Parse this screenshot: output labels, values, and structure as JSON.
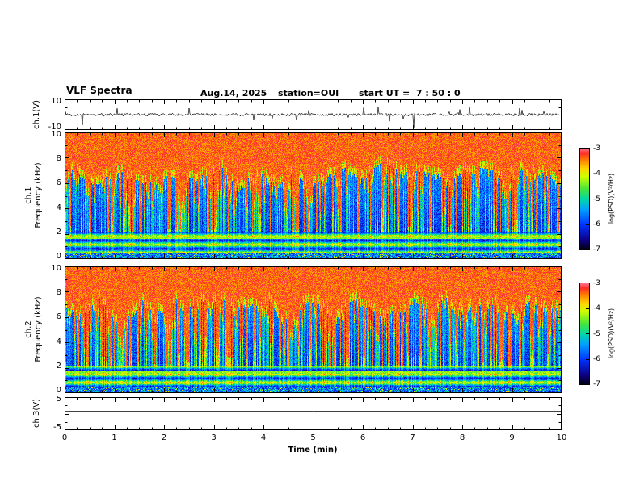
{
  "header": {
    "title": "VLF Spectra",
    "date": "Aug.14, 2025",
    "station": "station=OUI",
    "start_ut": "start UT =  7 : 50 : 0"
  },
  "xaxis": {
    "label": "Time (min)",
    "range": [
      0,
      10
    ],
    "ticks": [
      "0",
      "1",
      "2",
      "3",
      "4",
      "5",
      "6",
      "7",
      "8",
      "9",
      "10"
    ]
  },
  "chart_data": [
    {
      "type": "line",
      "name": "ch1-waveform",
      "ylabel": "ch.1(V)",
      "ylim": [
        -10,
        10
      ],
      "yticks": [
        "10",
        "-10"
      ],
      "description": "Broadband noise around 0 V with dense impulsive spikes reaching roughly ±10 V across the full 10 minute record"
    },
    {
      "type": "heatmap",
      "name": "ch1-spectrogram",
      "channel_label": "ch.1",
      "ylabel": "Frequency (kHz)",
      "ylim": [
        0,
        10
      ],
      "yticks": [
        "10",
        "8",
        "6",
        "4",
        "2",
        "0"
      ],
      "colorbar": {
        "label": "log(PSD)(V²/Hz)",
        "ticks": [
          "-3",
          "-4",
          "-5",
          "-6",
          "-7"
        ],
        "range": [
          -7,
          -3
        ]
      },
      "description": "VLF power spectral density: high PSD (red ~ -3) above ~6-8 kHz, dense vertical sferic streaks (yellow/green) extending down to low frequency, blue background (~ -6) between 2 and 6 kHz, banded hum structure below 2 kHz"
    },
    {
      "type": "heatmap",
      "name": "ch2-spectrogram",
      "channel_label": "ch.2",
      "ylabel": "Frequency (kHz)",
      "ylim": [
        0,
        10
      ],
      "yticks": [
        "10",
        "8",
        "6",
        "4",
        "2",
        "0"
      ],
      "colorbar": {
        "label": "log(PSD)(V²/Hz)",
        "ticks": [
          "-3",
          "-4",
          "-5",
          "-6",
          "-7"
        ],
        "range": [
          -7,
          -3
        ]
      },
      "description": "Same structure as ch.1 spectrogram: red high-PSD region at top, vertical sferic streaks, blue mid-band, horizontal banding below 2 kHz"
    },
    {
      "type": "line",
      "name": "ch3-waveform",
      "ylabel": "ch.3(V)",
      "ylim": [
        -5,
        5
      ],
      "yticks": [
        "5",
        "-5"
      ],
      "constant_level_v": 0.7,
      "description": "Flat constant line slightly above 0 V for the entire record"
    }
  ]
}
